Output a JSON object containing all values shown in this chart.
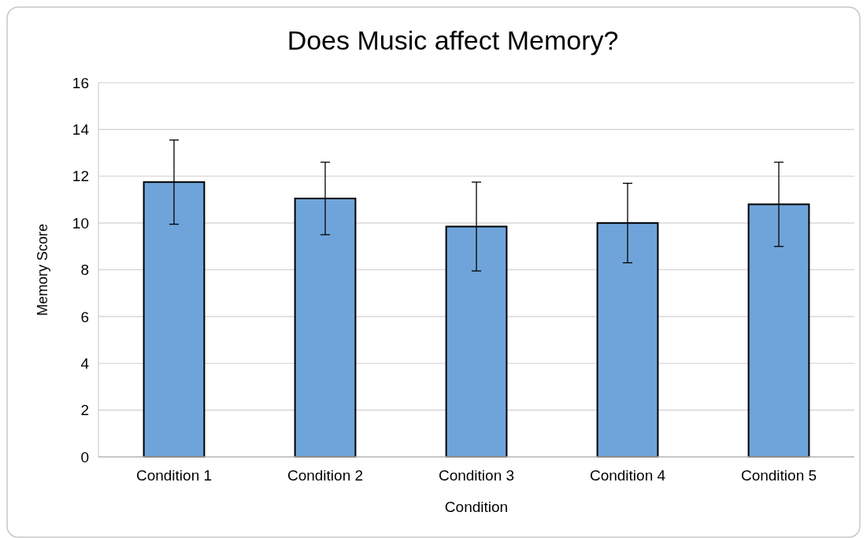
{
  "chart_data": {
    "type": "bar",
    "title": "Does Music affect Memory?",
    "xlabel": "Condition",
    "ylabel": "Memory Score",
    "categories": [
      "Condition 1",
      "Condition 2",
      "Condition 3",
      "Condition 4",
      "Condition 5"
    ],
    "values": [
      11.75,
      11.05,
      9.85,
      10.0,
      10.8
    ],
    "errors": [
      1.8,
      1.55,
      1.9,
      1.7,
      1.8
    ],
    "color": "#6fa4db",
    "ylim": [
      0,
      16
    ],
    "yticks": [
      0,
      2,
      4,
      6,
      8,
      10,
      12,
      14,
      16
    ],
    "grid": "y"
  }
}
